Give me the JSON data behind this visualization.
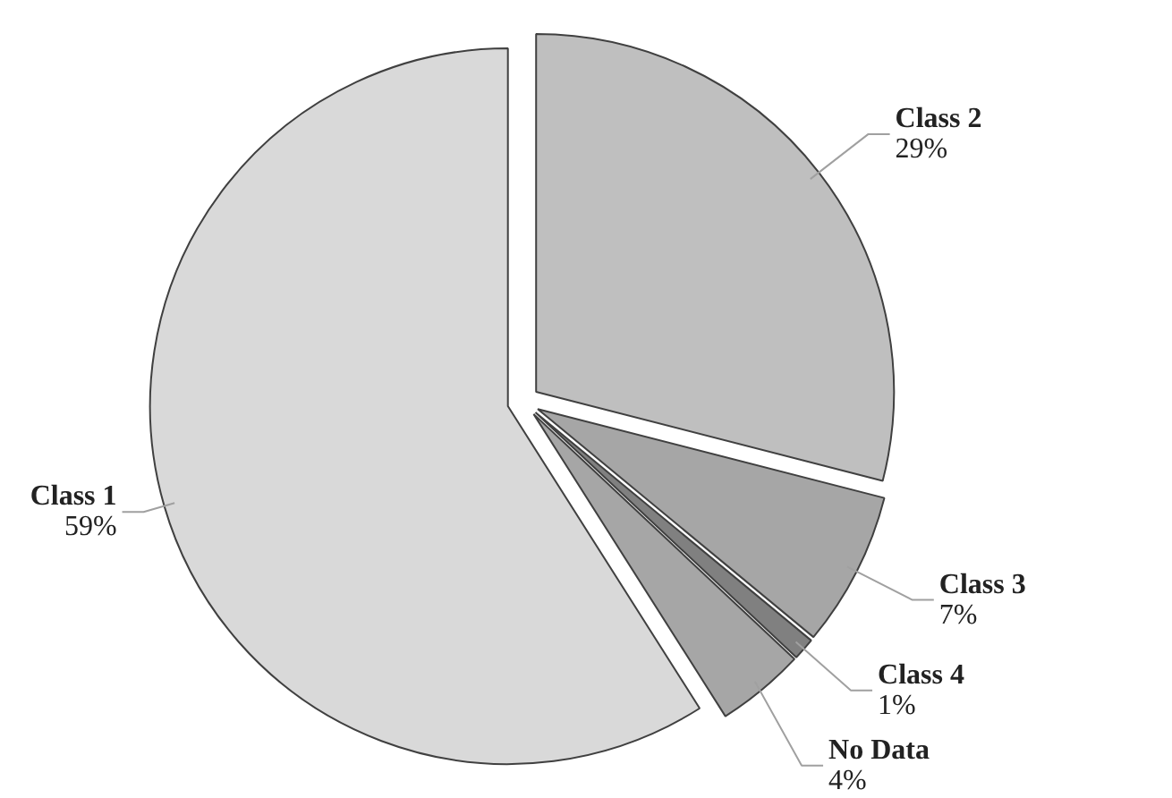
{
  "chart_data": {
    "type": "pie",
    "categories": [
      "Class 2",
      "Class 3",
      "Class 4",
      "No Data",
      "Class 1"
    ],
    "values": [
      29,
      7,
      1,
      4,
      59
    ],
    "colors": [
      "#bfbfbf",
      "#a6a6a6",
      "#808080",
      "#a6a6a6",
      "#d9d9d9"
    ],
    "value_labels": [
      "29%",
      "7%",
      "1%",
      "4%",
      "59%"
    ]
  }
}
